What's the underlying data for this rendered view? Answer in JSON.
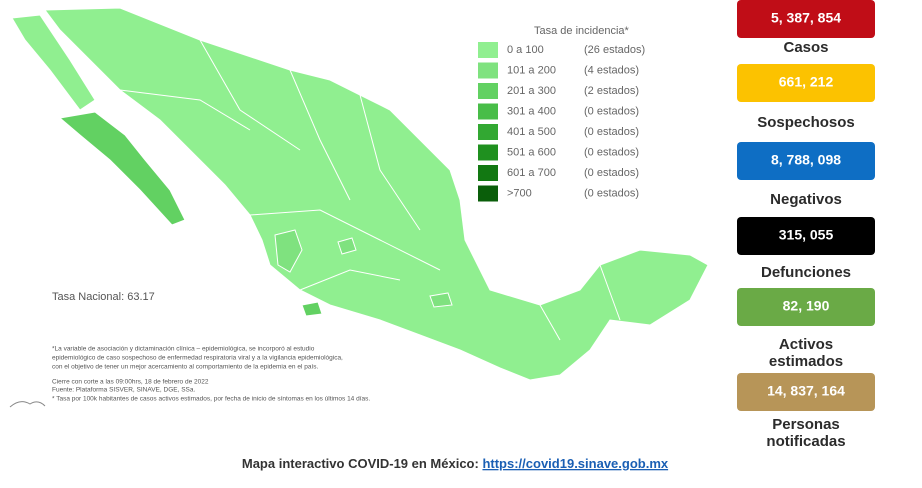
{
  "legend": {
    "title": "Tasa de incidencia*",
    "items": [
      {
        "range": "0 a 100",
        "count": "(26 estados)",
        "color": "#90ef90"
      },
      {
        "range": "101 a 200",
        "count": "(4 estados)",
        "color": "#7fe27f"
      },
      {
        "range": "201 a 300",
        "count": "(2 estados)",
        "color": "#62d162"
      },
      {
        "range": "301 a 400",
        "count": "(0 estados)",
        "color": "#48bd48"
      },
      {
        "range": "401 a 500",
        "count": "(0 estados)",
        "color": "#32a832"
      },
      {
        "range": "501 a 600",
        "count": "(0 estados)",
        "color": "#1f901f"
      },
      {
        "range": "601 a 700",
        "count": "(0 estados)",
        "color": "#127812"
      },
      {
        "range": ">700",
        "count": "(0 estados)",
        "color": "#0a5e0a"
      }
    ]
  },
  "national_rate": "Tasa Nacional: 63.17",
  "notes": [
    "*La variable de asociación y dictaminación clínica – epidemiológica, se incorporó al estudio",
    "epidemiológico de caso sospechoso de enfermedad respiratoria viral y a la vigilancia epidemiológica,",
    "con el objetivo de tener un mejor acercamiento al comportamiento de la epidemia en el país.",
    "Cierre con corte a las 09:00hrs, 18 de febrero de 2022",
    "Fuente: Plataforma SISVER, SINAVE, DGE, SSa.",
    "* Tasa por 100k habitantes de casos activos estimados, por fecha de inicio de síntomas en los últimos 14 días."
  ],
  "stats": [
    {
      "value": "5, 387, 854",
      "label": [
        "Casos"
      ],
      "color": "#c00d17",
      "text_color": "#ffffff"
    },
    {
      "value": "661, 212",
      "label": [
        "Sospechosos"
      ],
      "color": "#fcc200",
      "text_color": "#ffffff"
    },
    {
      "value": "8, 788, 098",
      "label": [
        "Negativos"
      ],
      "color": "#0e6ec4",
      "text_color": "#ffffff"
    },
    {
      "value": "315, 055",
      "label": [
        "Defunciones"
      ],
      "color": "#000000",
      "text_color": "#ffffff"
    },
    {
      "value": "82, 190",
      "label": [
        "Activos",
        "estimados"
      ],
      "color": "#6aaa46",
      "text_color": "#ffffff"
    },
    {
      "value": "14, 837, 164",
      "label": [
        "Personas",
        "notificadas"
      ],
      "color": "#b79558",
      "text_color": "#ffffff"
    }
  ],
  "footer": {
    "text": "Mapa interactivo COVID-19 en México:",
    "link": "https://covid19.sinave.gob.mx"
  }
}
